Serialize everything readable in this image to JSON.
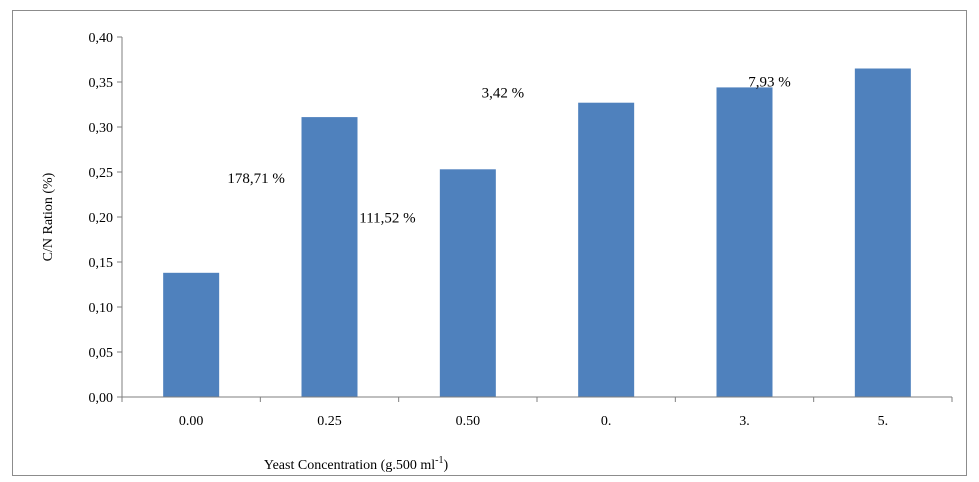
{
  "chart_data": {
    "type": "bar",
    "categories": [
      "0.00",
      "0.25",
      "0.50",
      "0.",
      "3.",
      "5."
    ],
    "values": [
      0.138,
      0.311,
      0.253,
      0.327,
      0.344,
      0.365
    ],
    "xlabel": "Yeast Concentration (g.500 ml",
    "xlabel_sup": "-1",
    "xlabel_end": ")",
    "ylabel": "C/N Ration  (%)",
    "ylim": [
      0,
      0.4
    ],
    "yticks": [
      0,
      0.05,
      0.1,
      0.15,
      0.2,
      0.25,
      0.3,
      0.35,
      0.4
    ],
    "ytick_labels": [
      "0,00",
      "0,05",
      "0,10",
      "0,15",
      "0,20",
      "0,25",
      "0,30",
      "0,35",
      "0,40"
    ],
    "bar_color": "#4f81bd",
    "grid": false,
    "legend": "none",
    "annotations": [
      {
        "text": "178,71  %",
        "category": "0.00",
        "y": 0.238
      },
      {
        "text": "111,52  %",
        "category": "0.25",
        "y": 0.194
      },
      {
        "text": "3,42  %",
        "category": "0.50",
        "y": 0.333
      },
      {
        "text": "7,93  %",
        "category": "3.",
        "y": 0.345
      }
    ]
  }
}
